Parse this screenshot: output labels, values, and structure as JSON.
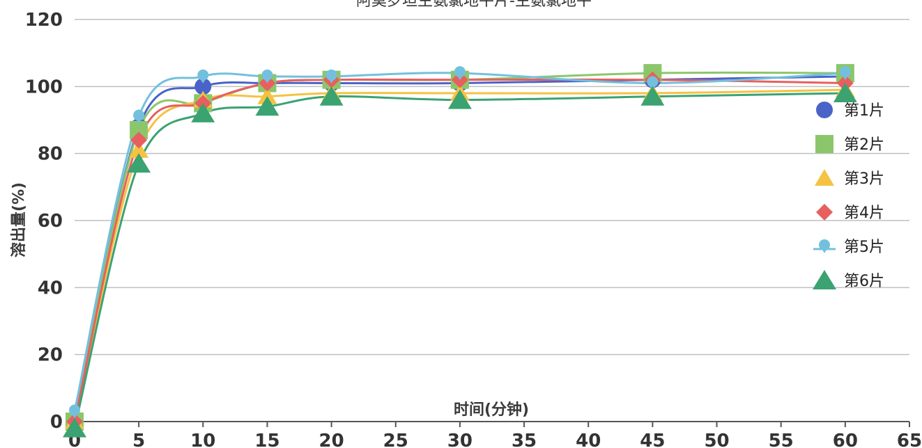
{
  "chart_data": {
    "type": "line",
    "title": "阿莫罗坦生氨氯地平片-生氨氯地平",
    "xlabel": "时间(分钟)",
    "ylabel": "溶出量(%)",
    "xlim": [
      0,
      65
    ],
    "ylim": [
      0,
      120
    ],
    "xticks": [
      0,
      5,
      10,
      15,
      20,
      25,
      30,
      35,
      40,
      45,
      50,
      55,
      60,
      65
    ],
    "yticks": [
      0,
      20,
      40,
      60,
      80,
      100,
      120
    ],
    "grid": "horizontal",
    "legend_position": "right",
    "x": [
      0,
      5,
      10,
      15,
      20,
      30,
      45,
      60
    ],
    "series": [
      {
        "name": "第1片",
        "color": "#4a63c8",
        "marker": "circle",
        "values": [
          0,
          88,
          100,
          101,
          101,
          101,
          102,
          103
        ]
      },
      {
        "name": "第2片",
        "color": "#8cc66b",
        "marker": "square",
        "values": [
          0,
          87,
          95,
          101,
          102,
          102,
          104,
          104
        ]
      },
      {
        "name": "第3片",
        "color": "#f5c242",
        "marker": "triangle",
        "values": [
          0,
          81,
          96,
          97,
          98,
          98,
          98,
          99
        ]
      },
      {
        "name": "第4片",
        "color": "#e85f5f",
        "marker": "diamond",
        "values": [
          0,
          84,
          95,
          101,
          102,
          102,
          102,
          101
        ]
      },
      {
        "name": "第5片",
        "color": "#73c0de",
        "marker": "pin",
        "values": [
          3,
          91,
          103,
          103,
          103,
          104,
          101,
          104
        ]
      },
      {
        "name": "第6片",
        "color": "#3ba272",
        "marker": "triangle-down",
        "values": [
          -2,
          77,
          92,
          94,
          97,
          96,
          97,
          98
        ]
      }
    ]
  }
}
